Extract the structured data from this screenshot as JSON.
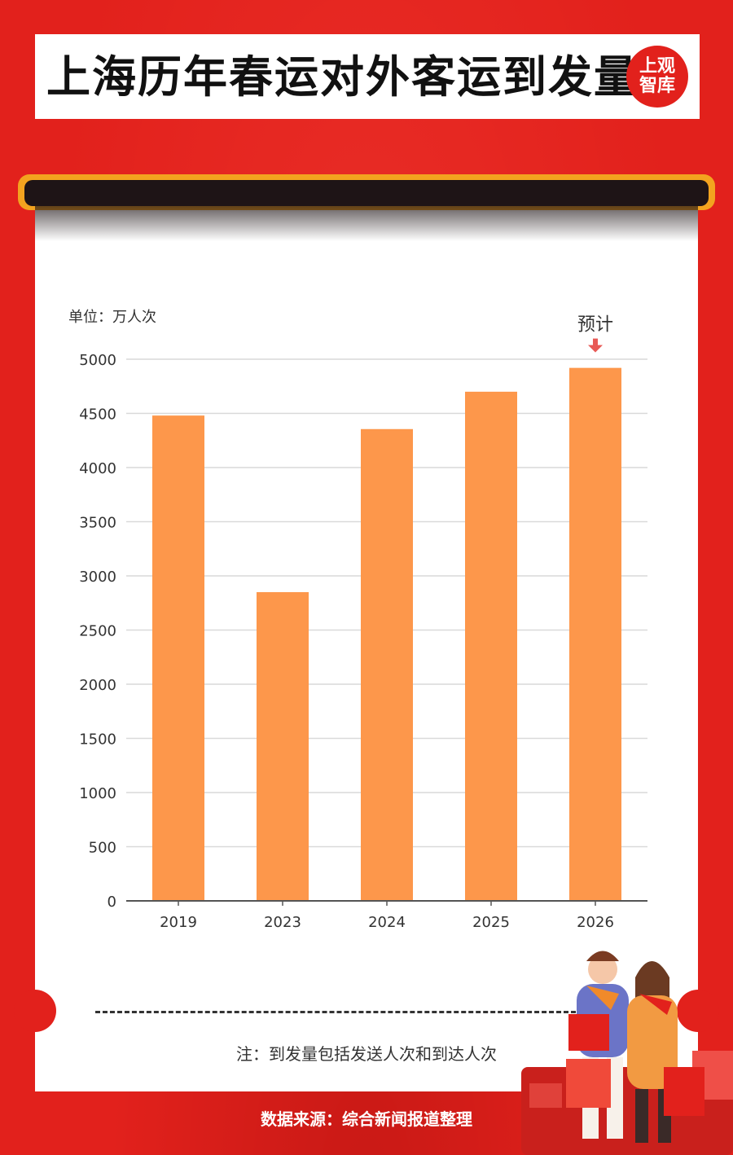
{
  "title": "上海历年春运对外客运到发量",
  "logo": {
    "line1": "上观",
    "line2": "智库"
  },
  "note": "注：到发量包括发送人次和到达人次",
  "source": "数据来源：综合新闻报道整理",
  "colors": {
    "background": "#e2211c",
    "bar": "#fd974b",
    "annotation_arrow": "#e85a56",
    "rod": "#f3a31f"
  },
  "chart_data": {
    "type": "bar",
    "unit_label": "单位：万人次",
    "categories": [
      "2019",
      "2023",
      "2024",
      "2025",
      "2026"
    ],
    "values": [
      4480,
      2850,
      4355,
      4700,
      4920
    ],
    "ylim": [
      0,
      5000
    ],
    "yticks": [
      0,
      500,
      1000,
      1500,
      2000,
      2500,
      3000,
      3500,
      4000,
      4500,
      5000
    ],
    "grid": true,
    "annotation": {
      "category": "2026",
      "text": "预计"
    }
  }
}
